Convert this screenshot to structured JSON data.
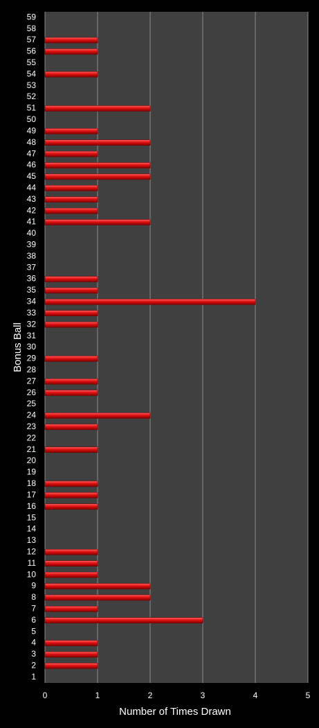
{
  "chart_data": {
    "type": "bar",
    "orientation": "horizontal",
    "x_label": "Number of Times Drawn",
    "y_label": "Bonus Ball",
    "categories": [
      "1",
      "2",
      "3",
      "4",
      "5",
      "6",
      "7",
      "8",
      "9",
      "10",
      "11",
      "12",
      "13",
      "14",
      "15",
      "16",
      "17",
      "18",
      "19",
      "20",
      "21",
      "22",
      "23",
      "24",
      "25",
      "26",
      "27",
      "28",
      "29",
      "30",
      "31",
      "32",
      "33",
      "34",
      "35",
      "36",
      "37",
      "38",
      "39",
      "40",
      "41",
      "42",
      "43",
      "44",
      "45",
      "46",
      "47",
      "48",
      "49",
      "50",
      "51",
      "52",
      "53",
      "54",
      "55",
      "56",
      "57",
      "58",
      "59"
    ],
    "values": [
      0,
      1,
      1,
      1,
      0,
      3,
      1,
      2,
      2,
      1,
      1,
      1,
      0,
      0,
      0,
      1,
      1,
      1,
      0,
      0,
      1,
      0,
      1,
      2,
      0,
      1,
      1,
      0,
      1,
      0,
      0,
      1,
      1,
      4,
      1,
      1,
      0,
      0,
      0,
      0,
      2,
      1,
      1,
      1,
      2,
      2,
      1,
      2,
      1,
      0,
      2,
      0,
      0,
      1,
      0,
      1,
      1,
      0,
      0
    ],
    "color": "#e01010",
    "xlim": [
      0,
      5
    ],
    "xticks": [
      0,
      1,
      2,
      3,
      4,
      5
    ],
    "grid": true
  }
}
